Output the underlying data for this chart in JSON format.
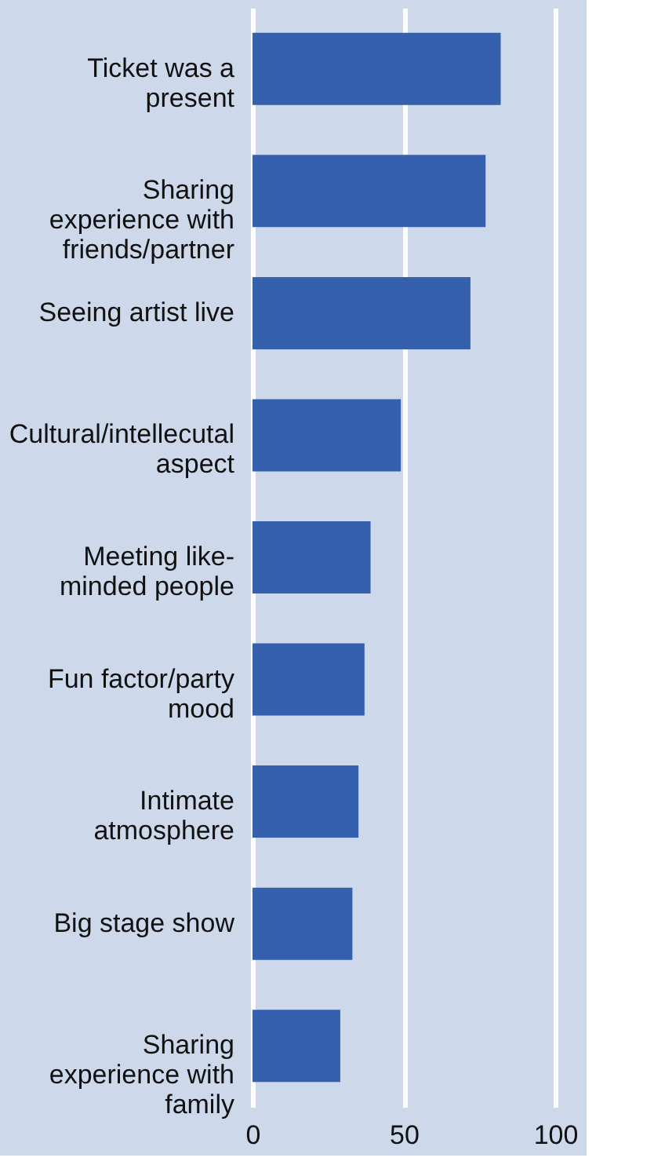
{
  "chart_data": {
    "type": "bar",
    "orientation": "horizontal",
    "categories": [
      "Ticket was a\npresent",
      "Sharing\nexperience with\nfriends/partner",
      "Seeing artist live",
      "Cultural/intellecutal\naspect",
      "Meeting like-\nminded people",
      "Fun factor/party\nmood",
      "Intimate\natmosphere",
      "Big stage show",
      "Sharing\nexperience with\nfamily"
    ],
    "values": [
      82,
      77,
      72,
      49,
      39,
      37,
      35,
      33,
      29
    ],
    "color": "#3560ad",
    "xlim": [
      0,
      100
    ],
    "xticks": [
      0,
      50,
      100
    ],
    "grid": "x"
  }
}
